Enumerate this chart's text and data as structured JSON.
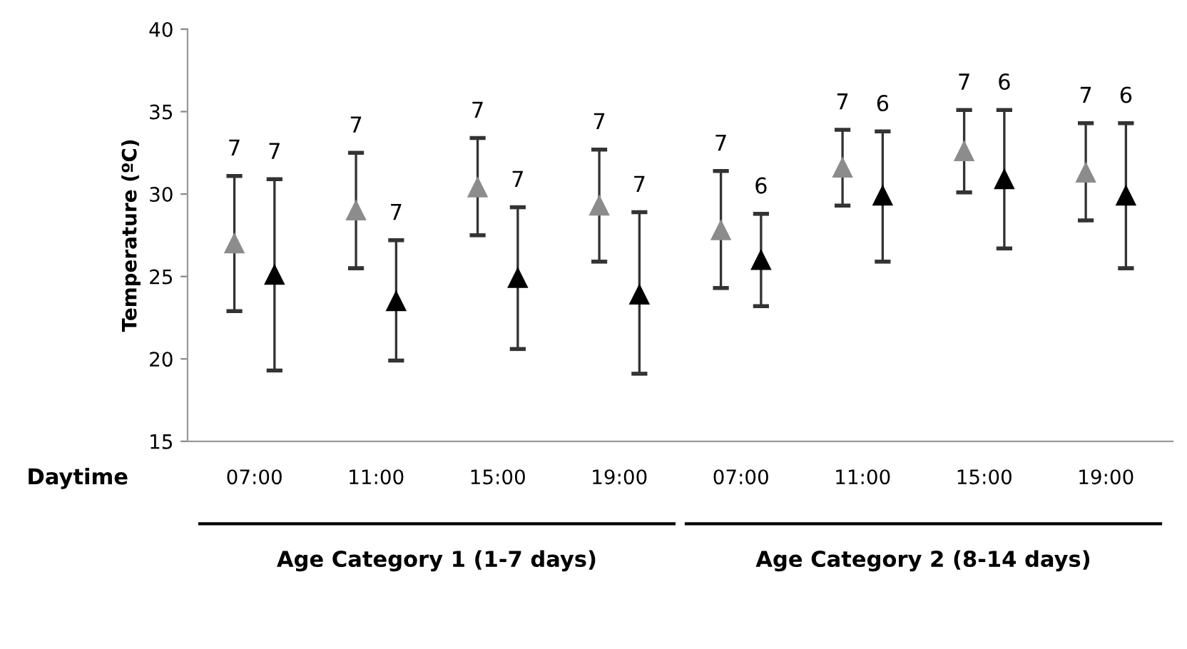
{
  "chart_data": {
    "type": "scatter",
    "ylabel": "Temperature (ºC)",
    "categories": [
      "07:00",
      "11:00",
      "15:00",
      "19:00",
      "07:00",
      "11:00",
      "15:00",
      "19:00"
    ],
    "series": [
      {
        "color": "#8c8c8c",
        "values": [
          27.0,
          29.0,
          30.4,
          29.3,
          27.8,
          31.6,
          32.6,
          31.3
        ],
        "errors": [
          [
            22.9,
            31.1
          ],
          [
            25.5,
            32.5
          ],
          [
            27.5,
            33.4
          ],
          [
            25.9,
            32.7
          ],
          [
            24.3,
            31.4
          ],
          [
            29.3,
            33.9
          ],
          [
            30.1,
            35.1
          ],
          [
            28.4,
            34.3
          ]
        ]
      },
      {
        "color": "#000000",
        "values": [
          25.1,
          23.5,
          24.9,
          23.9,
          26.0,
          29.9,
          30.9,
          29.9
        ],
        "errors": [
          [
            19.3,
            30.9
          ],
          [
            19.9,
            27.2
          ],
          [
            20.6,
            29.2
          ],
          [
            19.1,
            28.9
          ],
          [
            23.2,
            28.8
          ],
          [
            25.9,
            33.8
          ],
          [
            26.7,
            35.1
          ],
          [
            25.5,
            34.3
          ]
        ]
      }
    ],
    "annotations": [
      "7",
      "7",
      "7",
      "7",
      "7",
      "7",
      "7",
      "7",
      "7",
      "7",
      "7",
      "7",
      "6",
      "6",
      "6",
      "6",
      "Daytime",
      "Age Category 1 (1-7 days)",
      "Age Category 2 (8-14 days)"
    ],
    "ylim": [
      15,
      40
    ],
    "yticks": [
      15,
      20,
      25,
      30,
      35,
      40
    ],
    "marker": "triangle",
    "grid": false,
    "legend": false
  }
}
